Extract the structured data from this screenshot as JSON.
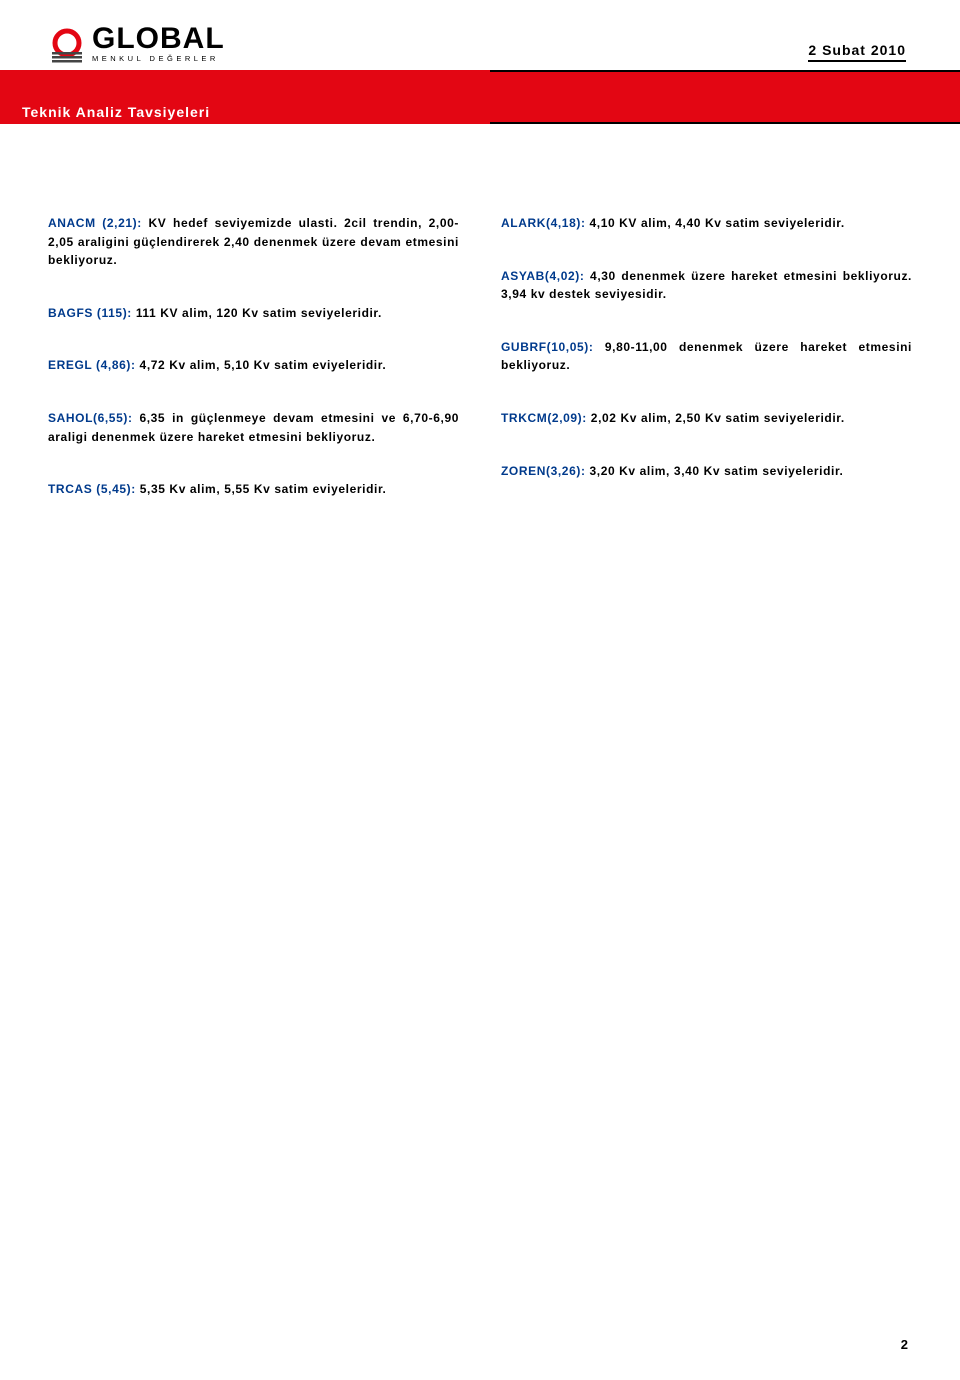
{
  "header": {
    "logo_word": "GLOBAL",
    "logo_sub": "MENKUL DEĞERLER",
    "date": "2 Subat 2010"
  },
  "colors": {
    "accent_red": "#e30613",
    "symbol_blue": "#003a8c",
    "text": "#000000",
    "background": "#ffffff",
    "white": "#ffffff"
  },
  "banner_title": "Teknik Analiz Tavsiyeleri",
  "left_entries": [
    {
      "symbol": "ANACM (2,21):",
      "text": " KV hedef seviyemizde ulasti. 2cil trendin, 2,00-2,05 araligini güçlendirerek 2,40 denenmek üzere devam etmesini bekliyoruz."
    },
    {
      "symbol": "BAGFS (115):",
      "text": " 111 KV alim, 120 Kv satim seviyeleridir."
    },
    {
      "symbol": "EREGL (4,86):",
      "text": " 4,72 Kv alim, 5,10 Kv satim eviyeleridir."
    },
    {
      "symbol": "SAHOL(6,55):",
      "text": " 6,35 in güçlenmeye devam etmesini ve 6,70-6,90 araligi  denenmek üzere hareket etmesini bekliyoruz."
    },
    {
      "symbol": "TRCAS (5,45):",
      "text": " 5,35 Kv alim, 5,55 Kv satim eviyeleridir."
    }
  ],
  "right_entries": [
    {
      "symbol": "ALARK(4,18):",
      "text": " 4,10 KV alim, 4,40 Kv satim seviyeleridir."
    },
    {
      "symbol": "ASYAB(4,02):",
      "text": " 4,30 denenmek üzere hareket etmesini bekliyoruz. 3,94 kv destek seviyesidir."
    },
    {
      "symbol": "GUBRF(10,05):",
      "text": " 9,80-11,00 denenmek üzere hareket etmesini bekliyoruz."
    },
    {
      "symbol": "TRKCM(2,09):",
      "text": " 2,02 Kv alim, 2,50 Kv satim seviyeleridir."
    },
    {
      "symbol": "ZOREN(3,26):",
      "text": " 3,20 Kv alim, 3,40 Kv satim seviyeleridir."
    }
  ],
  "page_number": "2"
}
